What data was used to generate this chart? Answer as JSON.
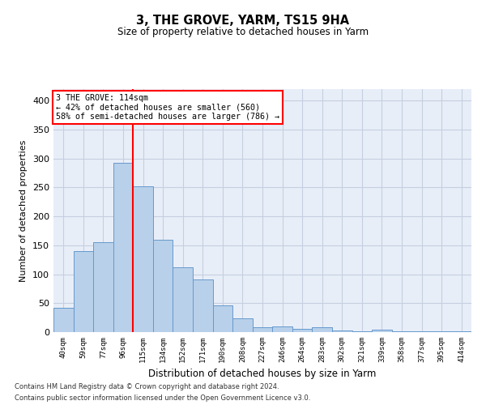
{
  "title": "3, THE GROVE, YARM, TS15 9HA",
  "subtitle": "Size of property relative to detached houses in Yarm",
  "xlabel": "Distribution of detached houses by size in Yarm",
  "ylabel": "Number of detached properties",
  "footnote1": "Contains HM Land Registry data © Crown copyright and database right 2024.",
  "footnote2": "Contains public sector information licensed under the Open Government Licence v3.0.",
  "annotation_line1": "3 THE GROVE: 114sqm",
  "annotation_line2": "← 42% of detached houses are smaller (560)",
  "annotation_line3": "58% of semi-detached houses are larger (786) →",
  "bar_labels": [
    "40sqm",
    "59sqm",
    "77sqm",
    "96sqm",
    "115sqm",
    "134sqm",
    "152sqm",
    "171sqm",
    "190sqm",
    "208sqm",
    "227sqm",
    "246sqm",
    "264sqm",
    "283sqm",
    "302sqm",
    "321sqm",
    "339sqm",
    "358sqm",
    "377sqm",
    "395sqm",
    "414sqm"
  ],
  "bar_values": [
    42,
    140,
    155,
    293,
    252,
    160,
    112,
    91,
    46,
    24,
    9,
    10,
    5,
    9,
    3,
    2,
    4,
    2,
    2,
    2,
    2
  ],
  "bar_color": "#b8d0ea",
  "bar_edge_color": "#6699cc",
  "vline_x_index": 4,
  "vline_color": "red",
  "bg_color": "#e8eef8",
  "grid_color": "#c5cfe0",
  "ylim": [
    0,
    420
  ],
  "yticks": [
    0,
    50,
    100,
    150,
    200,
    250,
    300,
    350,
    400
  ]
}
